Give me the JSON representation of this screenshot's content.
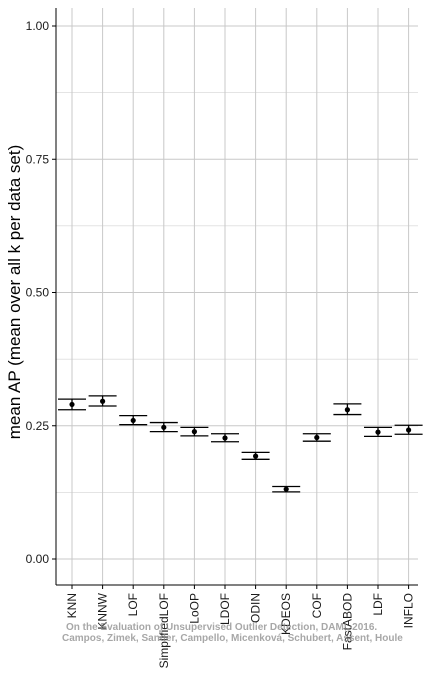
{
  "chart_data": {
    "type": "scatter",
    "subtype": "mean-with-error-bars",
    "title": "",
    "xlabel": "",
    "ylabel": "mean AP (mean over all k per data set)",
    "ylim": [
      0,
      1.05
    ],
    "yticks": [
      "0.00",
      "0.25",
      "0.50",
      "0.75",
      "1.00"
    ],
    "ytick_values": [
      0,
      0.25,
      0.5,
      0.75,
      1.0
    ],
    "grid": true,
    "x_tick_rotation": -90,
    "colors": {
      "grid": "#c8c8c8",
      "axis": "#000000",
      "marks": "#000000"
    },
    "categories": [
      "KNN",
      "KNNW",
      "LOF",
      "SimplifiedLOF",
      "LoOP",
      "LDOF",
      "ODIN",
      "KDEOS",
      "COF",
      "FastABOD",
      "LDF",
      "INFLO"
    ],
    "series": [
      {
        "mean": [
          0.29,
          0.296,
          0.26,
          0.247,
          0.239,
          0.227,
          0.193,
          0.131,
          0.228,
          0.28,
          0.238,
          0.242
        ],
        "lower": [
          0.28,
          0.287,
          0.252,
          0.239,
          0.231,
          0.22,
          0.187,
          0.126,
          0.221,
          0.271,
          0.23,
          0.234
        ],
        "upper": [
          0.3,
          0.306,
          0.269,
          0.256,
          0.247,
          0.235,
          0.2,
          0.136,
          0.235,
          0.291,
          0.247,
          0.251
        ]
      }
    ]
  },
  "watermark": {
    "line1": "On the Evaluation of Unsupervised Outlier Detection, DAMI, 2016.",
    "line2": "Campos, Zimek, Sander, Campello, Micenková, Schubert, Assent, Houle"
  }
}
